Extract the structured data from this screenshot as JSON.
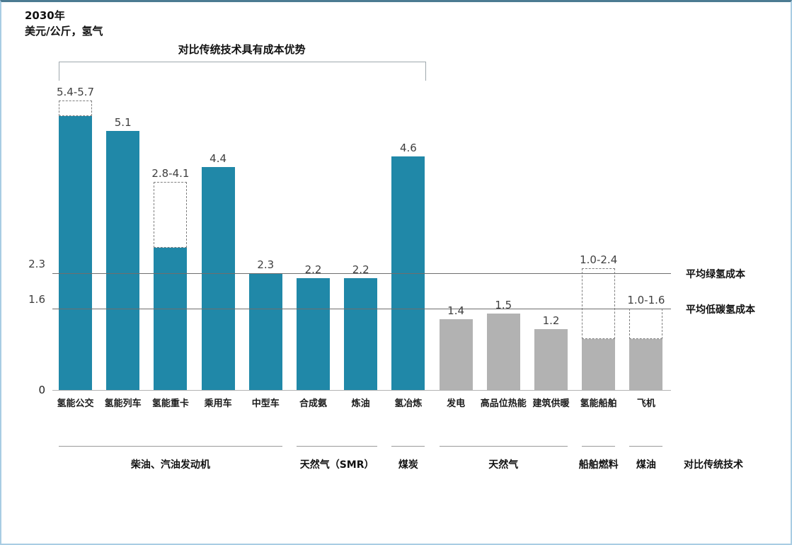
{
  "page": {
    "title_line1": "2030年",
    "title_line2": "美元/公斤，氢气"
  },
  "chart_data": {
    "type": "bar",
    "title": "2030年",
    "ylabel": "美元/公斤，氢气",
    "ylim": [
      0,
      6
    ],
    "grid": false,
    "legend_position": "none",
    "colors": {
      "teal": "#2088A8",
      "gray": "#B2B2B2"
    },
    "annotation_bracket": {
      "label": "对比传统技术具有成本优势",
      "from_bar": 0,
      "to_bar": 7
    },
    "bars": [
      {
        "category": "氢能公交",
        "value_label": "5.4-5.7",
        "solid": 5.4,
        "dashed_top": 5.7,
        "color_key": "teal"
      },
      {
        "category": "氢能列车",
        "value_label": "5.1",
        "solid": 5.1,
        "dashed_top": null,
        "color_key": "teal"
      },
      {
        "category": "氢能重卡",
        "value_label": "2.8-4.1",
        "solid": 2.8,
        "dashed_top": 4.1,
        "color_key": "teal"
      },
      {
        "category": "乘用车",
        "value_label": "4.4",
        "solid": 4.4,
        "dashed_top": null,
        "color_key": "teal"
      },
      {
        "category": "中型车",
        "value_label": "2.3",
        "solid": 2.3,
        "dashed_top": null,
        "color_key": "teal"
      },
      {
        "category": "合成氨",
        "value_label": "2.2",
        "solid": 2.2,
        "dashed_top": null,
        "color_key": "teal"
      },
      {
        "category": "炼油",
        "value_label": "2.2",
        "solid": 2.2,
        "dashed_top": null,
        "color_key": "teal"
      },
      {
        "category": "氢冶炼",
        "value_label": "4.6",
        "solid": 4.6,
        "dashed_top": null,
        "color_key": "teal"
      },
      {
        "category": "发电",
        "value_label": "1.4",
        "solid": 1.4,
        "dashed_top": null,
        "color_key": "gray"
      },
      {
        "category": "高品位热能",
        "value_label": "1.5",
        "solid": 1.5,
        "dashed_top": null,
        "color_key": "gray"
      },
      {
        "category": "建筑供暖",
        "value_label": "1.2",
        "solid": 1.2,
        "dashed_top": null,
        "color_key": "gray"
      },
      {
        "category": "氢能船舶",
        "value_label": "1.0-2.4",
        "solid": 1.0,
        "dashed_top": 2.4,
        "color_key": "gray"
      },
      {
        "category": "飞机",
        "value_label": "1.0-1.6",
        "solid": 1.0,
        "dashed_top": 1.6,
        "color_key": "gray"
      }
    ],
    "reference_lines": [
      {
        "value": 2.3,
        "tick_label": "2.3",
        "label": "平均绿氢成本"
      },
      {
        "value": 1.6,
        "tick_label": "1.6",
        "label": "平均低碳氢成本"
      }
    ],
    "y_axis": {
      "zero_label": "0"
    },
    "comparison_groups": [
      {
        "label": "柴油、汽油发动机",
        "from_bar": 0,
        "to_bar": 4
      },
      {
        "label": "天然气（SMR）",
        "from_bar": 5,
        "to_bar": 6
      },
      {
        "label": "煤炭",
        "from_bar": 7,
        "to_bar": 7
      },
      {
        "label": "天然气",
        "from_bar": 8,
        "to_bar": 10
      },
      {
        "label": "船舶燃料",
        "from_bar": 11,
        "to_bar": 11
      },
      {
        "label": "煤油",
        "from_bar": 12,
        "to_bar": 12
      }
    ],
    "footer_right_label": "对比传统技术"
  }
}
